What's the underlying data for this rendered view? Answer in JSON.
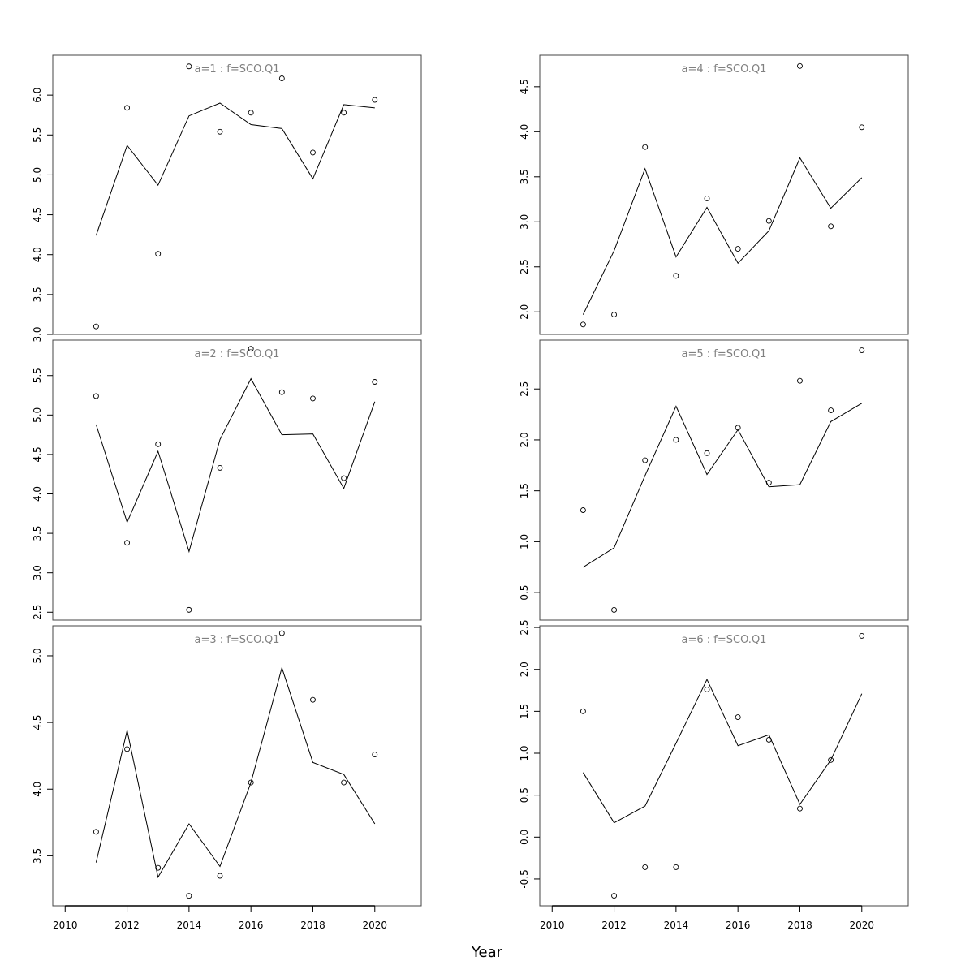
{
  "xlabel": "Year",
  "chart_data": [
    {
      "type": "scatter",
      "title": "a=1 : f=SCO.Q1",
      "x": [
        2011,
        2012,
        2013,
        2014,
        2015,
        2016,
        2017,
        2018,
        2019,
        2020
      ],
      "series": [
        {
          "kind": "points",
          "values": [
            3.1,
            5.84,
            4.01,
            6.36,
            5.54,
            5.78,
            6.21,
            5.28,
            5.78,
            5.94
          ]
        },
        {
          "kind": "line",
          "values": [
            4.24,
            5.37,
            4.87,
            5.74,
            5.9,
            5.63,
            5.58,
            4.95,
            5.88,
            5.84
          ]
        }
      ],
      "ylim": [
        3.0,
        6.5
      ],
      "yticks": [
        "3.0",
        "3.5",
        "4.0",
        "4.5",
        "5.0",
        "5.5",
        "6.0"
      ]
    },
    {
      "type": "scatter",
      "title": "a=2 : f=SCO.Q1",
      "x": [
        2011,
        2012,
        2013,
        2014,
        2015,
        2016,
        2017,
        2018,
        2019,
        2020
      ],
      "series": [
        {
          "kind": "points",
          "values": [
            5.24,
            3.38,
            4.63,
            2.53,
            4.33,
            5.84,
            5.29,
            5.21,
            4.2,
            5.42
          ]
        },
        {
          "kind": "line",
          "values": [
            4.88,
            3.64,
            4.54,
            3.27,
            4.69,
            5.46,
            4.75,
            4.76,
            4.07,
            5.17
          ]
        }
      ],
      "ylim": [
        2.4,
        5.95
      ],
      "yticks": [
        "2.5",
        "3.0",
        "3.5",
        "4.0",
        "4.5",
        "5.0",
        "5.5"
      ]
    },
    {
      "type": "scatter",
      "title": "a=3 : f=SCO.Q1",
      "x": [
        2011,
        2012,
        2013,
        2014,
        2015,
        2016,
        2017,
        2018,
        2019,
        2020
      ],
      "series": [
        {
          "kind": "points",
          "values": [
            3.68,
            4.3,
            3.41,
            3.2,
            3.35,
            4.05,
            5.17,
            4.67,
            4.05,
            4.26
          ]
        },
        {
          "kind": "line",
          "values": [
            3.45,
            4.44,
            3.34,
            3.74,
            3.42,
            4.05,
            4.91,
            4.2,
            4.11,
            3.74
          ]
        }
      ],
      "ylim": [
        3.125,
        5.225
      ],
      "yticks": [
        "3.5",
        "4.0",
        "4.5",
        "5.0"
      ]
    },
    {
      "type": "scatter",
      "title": "a=4 : f=SCO.Q1",
      "x": [
        2011,
        2012,
        2013,
        2014,
        2015,
        2016,
        2017,
        2018,
        2019,
        2020
      ],
      "series": [
        {
          "kind": "points",
          "values": [
            1.86,
            1.97,
            3.83,
            2.4,
            3.26,
            2.7,
            3.01,
            4.73,
            2.95,
            4.05
          ]
        },
        {
          "kind": "line",
          "values": [
            1.97,
            2.68,
            3.59,
            2.61,
            3.16,
            2.54,
            2.9,
            3.71,
            3.15,
            3.49
          ]
        }
      ],
      "ylim": [
        1.75,
        4.85
      ],
      "yticks": [
        "2.0",
        "2.5",
        "3.0",
        "3.5",
        "4.0",
        "4.5"
      ]
    },
    {
      "type": "scatter",
      "title": "a=5 : f=SCO.Q1",
      "x": [
        2011,
        2012,
        2013,
        2014,
        2015,
        2016,
        2017,
        2018,
        2019,
        2020
      ],
      "series": [
        {
          "kind": "points",
          "values": [
            1.31,
            0.33,
            1.8,
            2.0,
            1.87,
            2.12,
            1.58,
            2.58,
            2.29,
            2.88
          ]
        },
        {
          "kind": "line",
          "values": [
            0.75,
            0.94,
            1.65,
            2.33,
            1.66,
            2.1,
            1.54,
            1.56,
            2.18,
            2.36
          ]
        }
      ],
      "ylim": [
        0.23,
        2.98
      ],
      "yticks": [
        "0.5",
        "1.0",
        "1.5",
        "2.0",
        "2.5"
      ]
    },
    {
      "type": "scatter",
      "title": "a=6 : f=SCO.Q1",
      "x": [
        2011,
        2012,
        2013,
        2014,
        2015,
        2016,
        2017,
        2018,
        2019,
        2020
      ],
      "series": [
        {
          "kind": "points",
          "values": [
            1.5,
            -0.7,
            -0.36,
            -0.36,
            1.76,
            1.43,
            1.16,
            0.34,
            0.92,
            2.4
          ]
        },
        {
          "kind": "line",
          "values": [
            0.77,
            0.17,
            0.37,
            1.12,
            1.88,
            1.09,
            1.22,
            0.39,
            0.92,
            1.71
          ]
        }
      ],
      "ylim": [
        -0.82,
        2.52
      ],
      "yticks": [
        "-0.5",
        "0.0",
        "0.5",
        "1.0",
        "1.5",
        "2.0",
        "2.5"
      ]
    }
  ],
  "xaxis": {
    "xlim": [
      2009.6,
      2021.5
    ],
    "xticks": [
      "2010",
      "2012",
      "2014",
      "2016",
      "2018",
      "2020"
    ]
  }
}
